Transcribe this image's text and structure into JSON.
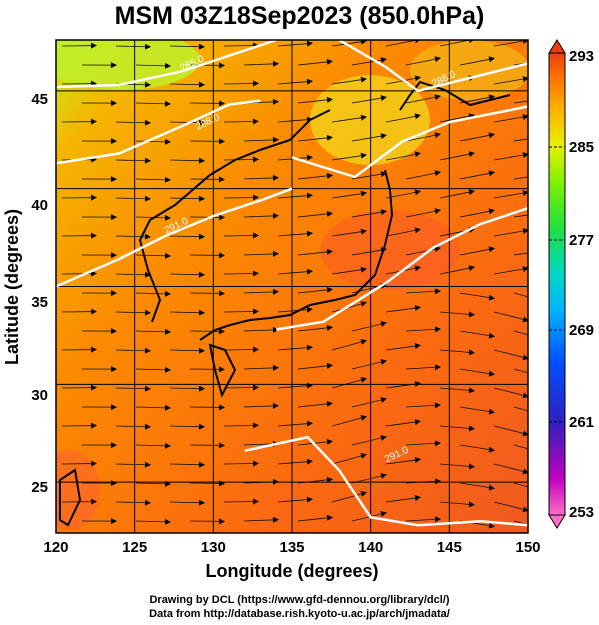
{
  "title": "MSM 03Z18Sep2023 (850.0hPa)",
  "x_axis": {
    "label": "Longitude (degrees)",
    "ticks": [
      "120",
      "125",
      "130",
      "135",
      "140",
      "145",
      "150"
    ]
  },
  "y_axis": {
    "label": "Latitude  (degrees)",
    "ticks": [
      "25",
      "30",
      "35",
      "40",
      "45"
    ]
  },
  "colorbar": {
    "ticks": [
      "293",
      "285",
      "277",
      "269",
      "261",
      "253"
    ],
    "colors": [
      "#ff6ec7",
      "#c000c0",
      "#3020c0",
      "#0050ff",
      "#00b0ff",
      "#00d8c8",
      "#20e040",
      "#80f000",
      "#e8f000",
      "#ffb000",
      "#ff7000",
      "#e84010"
    ]
  },
  "contour_labels": [
    "285.0",
    "288.0",
    "288.0",
    "291.0",
    "291.0"
  ],
  "credits": {
    "line1": "Drawing by DCL (https://www.gfd-dennou.org/library/dcl/)",
    "line2": "Data from http://database.rish.kyoto-u.ac.jp/arch/jmadata/"
  },
  "chart_data": {
    "type": "heatmap",
    "title": "MSM 03Z18Sep2023 (850.0hPa)",
    "xlabel": "Longitude (degrees)",
    "ylabel": "Latitude  (degrees)",
    "xlim": [
      120,
      150
    ],
    "ylim": [
      22.4,
      47.6
    ],
    "colorbar_range": [
      253,
      293
    ],
    "colorbar_ticks": [
      293,
      285,
      277,
      269,
      261,
      253
    ],
    "contours": [
      {
        "level": 285.0,
        "path": [
          [
            120,
            45.2
          ],
          [
            124,
            45.3
          ],
          [
            128,
            46.0
          ],
          [
            131,
            46.8
          ],
          [
            134,
            47.6
          ]
        ]
      },
      {
        "level": 285.0,
        "path": [
          [
            138,
            47.6
          ],
          [
            141,
            46.2
          ],
          [
            143,
            45.0
          ],
          [
            146,
            45.6
          ],
          [
            150,
            46.4
          ]
        ]
      },
      {
        "level": 288.0,
        "path": [
          [
            120,
            41.3
          ],
          [
            124,
            41.8
          ],
          [
            128,
            43.2
          ],
          [
            131,
            44.3
          ],
          [
            133,
            44.5
          ]
        ]
      },
      {
        "level": 288.0,
        "path": [
          [
            135,
            41.6
          ],
          [
            139,
            40.6
          ],
          [
            142,
            42.4
          ],
          [
            145,
            43.4
          ],
          [
            150,
            44.2
          ]
        ]
      },
      {
        "level": 291.0,
        "path": [
          [
            120,
            35.0
          ],
          [
            124,
            36.4
          ],
          [
            127,
            37.6
          ],
          [
            130,
            38.6
          ],
          [
            133,
            39.4
          ],
          [
            135,
            40.0
          ]
        ]
      },
      {
        "level": 291.0,
        "path": [
          [
            134,
            32.8
          ],
          [
            137,
            33.2
          ],
          [
            141,
            35.2
          ],
          [
            144,
            37.0
          ],
          [
            147,
            38.2
          ],
          [
            150,
            39.0
          ]
        ]
      },
      {
        "level": 291.0,
        "path": [
          [
            132,
            26.6
          ],
          [
            136,
            27.3
          ],
          [
            138,
            25.6
          ],
          [
            140,
            23.2
          ],
          [
            143,
            22.8
          ],
          [
            147,
            23.0
          ],
          [
            150,
            22.8
          ]
        ]
      }
    ],
    "grid": true
  }
}
